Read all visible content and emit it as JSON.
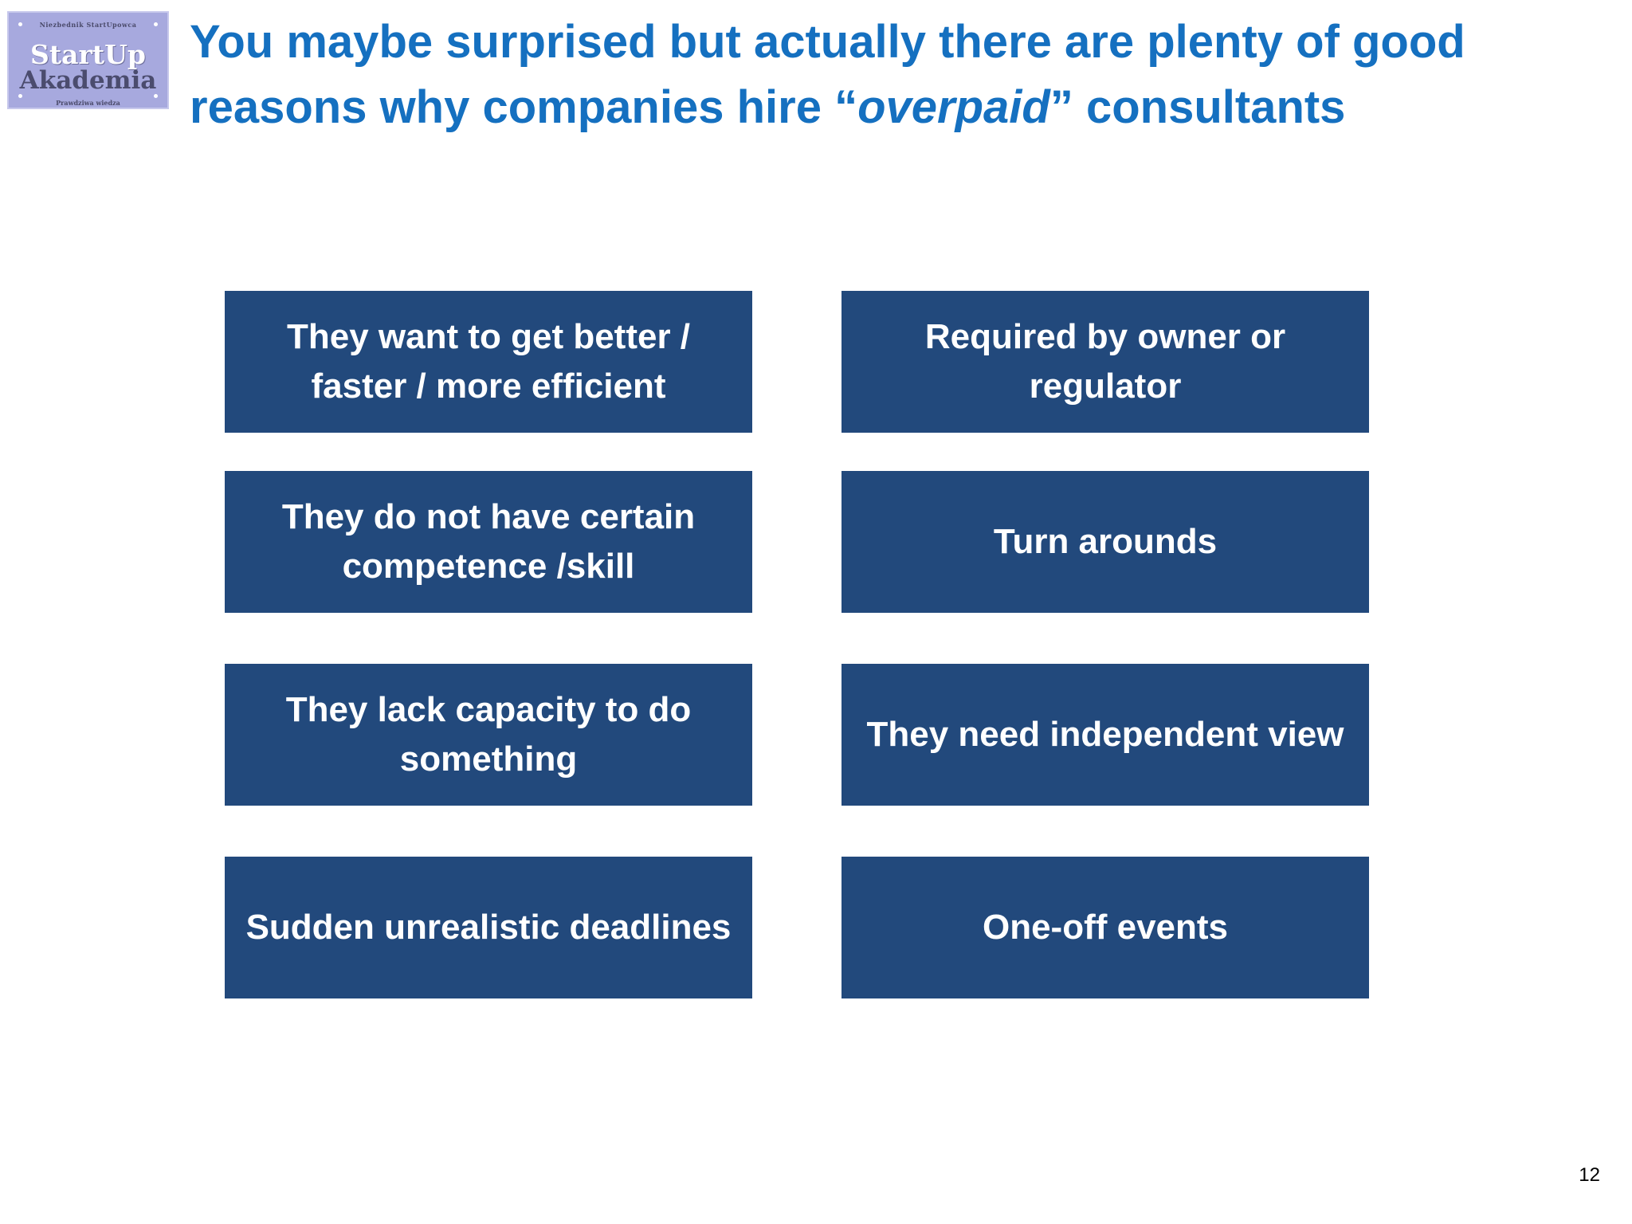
{
  "logo": {
    "top_text": "Niezbednik StartUpowca",
    "line1": "StartUp",
    "line2": "Akademia",
    "bottom_text": "Prawdziwa wiedza"
  },
  "title": {
    "part1": "You maybe surprised but actually there are plenty of good reasons why companies hire “",
    "emphasis": "overpaid",
    "part2": "” consultants"
  },
  "reasons": {
    "left": [
      "They  want to get better / faster / more  efficient",
      "They do not have certain competence /skill",
      "They lack capacity to do something",
      "Sudden unrealistic deadlines"
    ],
    "right": [
      "Required by owner or regulator",
      "Turn arounds",
      "They need independent view",
      "One-off events"
    ]
  },
  "page_number": "12",
  "colors": {
    "title": "#1570c0",
    "box_background": "#22497c",
    "box_text": "#ffffff",
    "logo_background": "#a7a9de"
  }
}
